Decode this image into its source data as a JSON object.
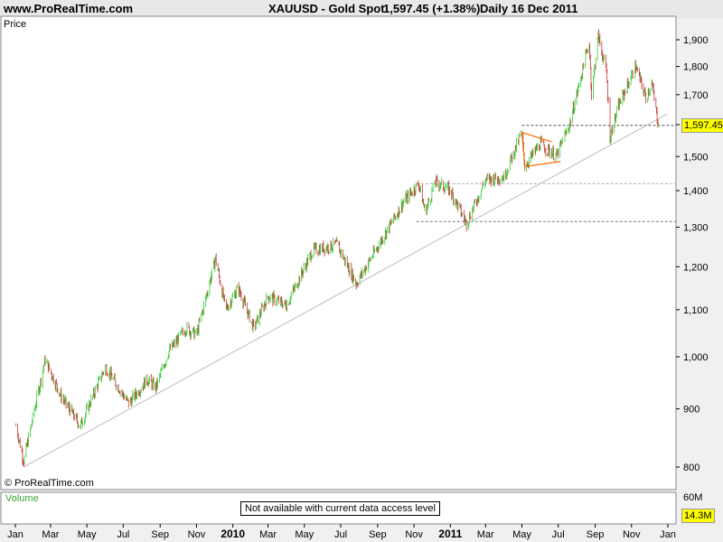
{
  "header": {
    "site": "www.ProRealTime.com",
    "instrument": "XAUUSD - Gold Spot",
    "quote": "1,597.45 (+1.38%)",
    "period": "Daily  16 Dec 2011"
  },
  "colors": {
    "up": "#33cc33",
    "down": "#cc3333",
    "trendline": "#bbbbbb",
    "triangle": "#ff6600",
    "tag": "#ffff00"
  },
  "chart_data": {
    "type": "candlestick",
    "title": "XAUUSD - Gold Spot",
    "ylabel": "Price",
    "y_scale": "log",
    "ylim": [
      780,
      1930
    ],
    "y_ticks": [
      800,
      900,
      1000,
      1100,
      1200,
      1300,
      1400,
      1500,
      1600,
      1700,
      1800,
      1900
    ],
    "y_tick_labels": [
      "800",
      "900",
      "1,000",
      "1,100",
      "1,200",
      "1,300",
      "1,400",
      "1,500",
      "",
      "1,700",
      "1,800",
      "1,900"
    ],
    "last_price": 1597.45,
    "last_price_label": "1,597.45",
    "x_ticks": [
      {
        "date": "2009-01-01",
        "label": "Jan",
        "bold": false
      },
      {
        "date": "2009-03-01",
        "label": "Mar",
        "bold": false
      },
      {
        "date": "2009-05-01",
        "label": "May",
        "bold": false
      },
      {
        "date": "2009-07-01",
        "label": "Jul",
        "bold": false
      },
      {
        "date": "2009-09-01",
        "label": "Sep",
        "bold": false
      },
      {
        "date": "2009-11-01",
        "label": "Nov",
        "bold": false
      },
      {
        "date": "2010-01-01",
        "label": "2010",
        "bold": true
      },
      {
        "date": "2010-03-01",
        "label": "Mar",
        "bold": false
      },
      {
        "date": "2010-05-01",
        "label": "May",
        "bold": false
      },
      {
        "date": "2010-07-01",
        "label": "Jul",
        "bold": false
      },
      {
        "date": "2010-09-01",
        "label": "Sep",
        "bold": false
      },
      {
        "date": "2010-11-01",
        "label": "Nov",
        "bold": false
      },
      {
        "date": "2011-01-01",
        "label": "2011",
        "bold": true
      },
      {
        "date": "2011-03-01",
        "label": "Mar",
        "bold": false
      },
      {
        "date": "2011-05-01",
        "label": "May",
        "bold": false
      },
      {
        "date": "2011-07-01",
        "label": "Jul",
        "bold": false
      },
      {
        "date": "2011-09-01",
        "label": "Sep",
        "bold": false
      },
      {
        "date": "2011-11-01",
        "label": "Nov",
        "bold": false
      },
      {
        "date": "2012-01-01",
        "label": "Jan",
        "bold": false
      }
    ],
    "price_path": [
      {
        "date": "2009-01-02",
        "price": 870
      },
      {
        "date": "2009-01-15",
        "price": 810
      },
      {
        "date": "2009-02-20",
        "price": 995
      },
      {
        "date": "2009-03-20",
        "price": 920
      },
      {
        "date": "2009-04-20",
        "price": 870
      },
      {
        "date": "2009-06-01",
        "price": 980
      },
      {
        "date": "2009-07-10",
        "price": 910
      },
      {
        "date": "2009-08-10",
        "price": 955
      },
      {
        "date": "2009-08-25",
        "price": 940
      },
      {
        "date": "2009-09-15",
        "price": 1010
      },
      {
        "date": "2009-10-15",
        "price": 1060
      },
      {
        "date": "2009-11-01",
        "price": 1045
      },
      {
        "date": "2009-12-03",
        "price": 1220
      },
      {
        "date": "2009-12-20",
        "price": 1100
      },
      {
        "date": "2010-01-10",
        "price": 1150
      },
      {
        "date": "2010-02-05",
        "price": 1060
      },
      {
        "date": "2010-03-01",
        "price": 1130
      },
      {
        "date": "2010-04-01",
        "price": 1110
      },
      {
        "date": "2010-05-15",
        "price": 1240
      },
      {
        "date": "2010-06-25",
        "price": 1255
      },
      {
        "date": "2010-07-27",
        "price": 1160
      },
      {
        "date": "2010-09-01",
        "price": 1250
      },
      {
        "date": "2010-10-15",
        "price": 1370
      },
      {
        "date": "2010-11-09",
        "price": 1420
      },
      {
        "date": "2010-11-20",
        "price": 1340
      },
      {
        "date": "2010-12-07",
        "price": 1425
      },
      {
        "date": "2011-01-01",
        "price": 1400
      },
      {
        "date": "2011-01-28",
        "price": 1310
      },
      {
        "date": "2011-03-01",
        "price": 1430
      },
      {
        "date": "2011-04-01",
        "price": 1440
      },
      {
        "date": "2011-05-01",
        "price": 1575
      },
      {
        "date": "2011-05-06",
        "price": 1470
      },
      {
        "date": "2011-06-01",
        "price": 1540
      },
      {
        "date": "2011-06-28",
        "price": 1500
      },
      {
        "date": "2011-07-20",
        "price": 1600
      },
      {
        "date": "2011-08-22",
        "price": 1890
      },
      {
        "date": "2011-08-26",
        "price": 1700
      },
      {
        "date": "2011-09-06",
        "price": 1915
      },
      {
        "date": "2011-09-20",
        "price": 1780
      },
      {
        "date": "2011-09-26",
        "price": 1560
      },
      {
        "date": "2011-10-10",
        "price": 1660
      },
      {
        "date": "2011-11-08",
        "price": 1800
      },
      {
        "date": "2011-11-25",
        "price": 1690
      },
      {
        "date": "2011-12-05",
        "price": 1740
      },
      {
        "date": "2011-12-16",
        "price": 1597.45
      }
    ],
    "support_lines": [
      1597.45,
      1420,
      1315
    ],
    "resistance_start": "2011-05-01",
    "trendline": {
      "start": {
        "date": "2009-01-15",
        "price": 800
      },
      "end": {
        "date": "2011-12-31",
        "price": 1635
      }
    },
    "triangle": [
      {
        "date": "2011-05-01",
        "price": 1575
      },
      {
        "date": "2011-06-20",
        "price": 1545
      },
      {
        "date": "2011-05-06",
        "price": 1470
      },
      {
        "date": "2011-07-05",
        "price": 1485
      }
    ],
    "watermark": "© ProRealTime.com"
  },
  "volume": {
    "label": "Volume",
    "tick_label": "60M",
    "value_label": "14.3M",
    "notice": "Not available with current data access level"
  }
}
